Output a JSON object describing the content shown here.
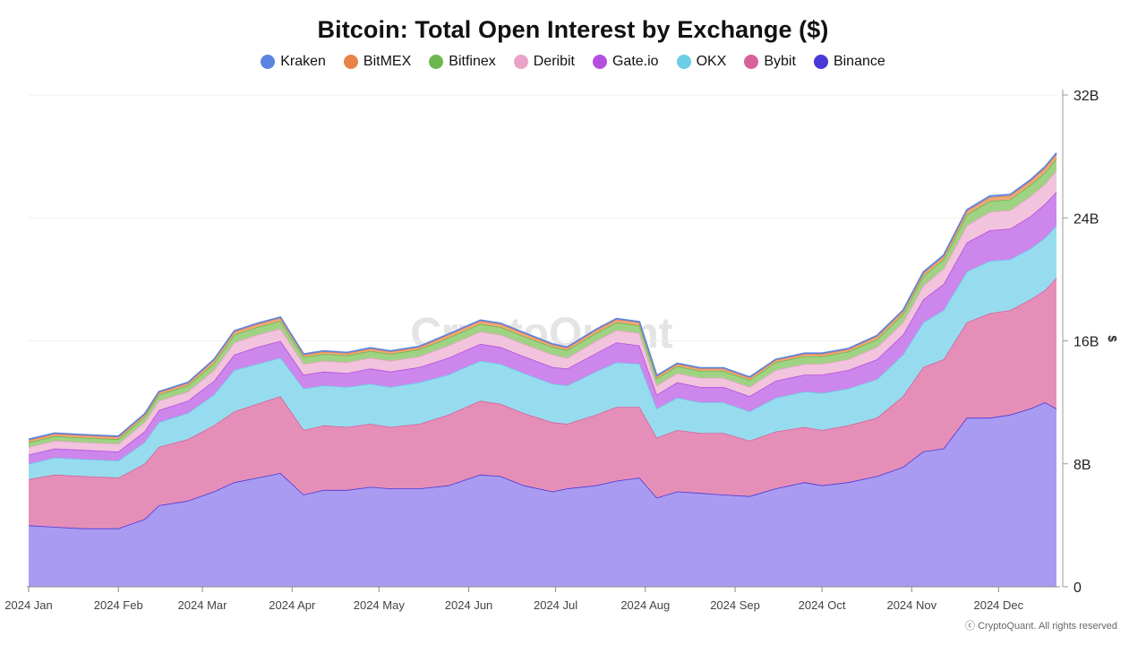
{
  "title": "Bitcoin: Total Open Interest by Exchange ($)",
  "footer": "ⓒ CryptoQuant. All rights reserved",
  "watermark": "CryptoQuant",
  "chart_data": {
    "type": "area",
    "stacked": true,
    "title": "Bitcoin: Total Open Interest by Exchange ($)",
    "ylabel": "$",
    "ylim": [
      0,
      32
    ],
    "y_unit": "B",
    "y_ticks": [
      0,
      8,
      16,
      24,
      32
    ],
    "y_tick_labels": [
      "0",
      "8B",
      "16B",
      "24B",
      "32B"
    ],
    "y_axis_position": "right",
    "grid": true,
    "legend_position": "top",
    "x": [
      "2024-01-01",
      "2024-01-10",
      "2024-01-20",
      "2024-02-01",
      "2024-02-10",
      "2024-02-15",
      "2024-02-25",
      "2024-03-05",
      "2024-03-12",
      "2024-03-20",
      "2024-03-28",
      "2024-04-05",
      "2024-04-12",
      "2024-04-20",
      "2024-04-28",
      "2024-05-05",
      "2024-05-15",
      "2024-05-25",
      "2024-06-05",
      "2024-06-12",
      "2024-06-20",
      "2024-06-30",
      "2024-07-05",
      "2024-07-15",
      "2024-07-22",
      "2024-07-30",
      "2024-08-05",
      "2024-08-12",
      "2024-08-20",
      "2024-08-28",
      "2024-09-06",
      "2024-09-15",
      "2024-09-25",
      "2024-10-01",
      "2024-10-10",
      "2024-10-20",
      "2024-10-29",
      "2024-11-05",
      "2024-11-12",
      "2024-11-20",
      "2024-11-28",
      "2024-12-05",
      "2024-12-12",
      "2024-12-17",
      "2024-12-21"
    ],
    "x_tick_labels": [
      "2024 Jan",
      "2024 Feb",
      "2024 Mar",
      "2024 Apr",
      "2024 May",
      "2024 Jun",
      "2024 Jul",
      "2024 Aug",
      "2024 Sep",
      "2024 Oct",
      "2024 Nov",
      "2024 Dec"
    ],
    "x_tick_dates": [
      "2024-01-01",
      "2024-02-01",
      "2024-03-01",
      "2024-04-01",
      "2024-05-01",
      "2024-06-01",
      "2024-07-01",
      "2024-08-01",
      "2024-09-01",
      "2024-10-01",
      "2024-11-01",
      "2024-12-01"
    ],
    "x_range": [
      "2024-01-01",
      "2024-12-21"
    ],
    "series": [
      {
        "name": "Binance",
        "color": "#4a38d8",
        "fill": "#a99bf2",
        "values": [
          4.0,
          3.9,
          3.8,
          3.8,
          4.4,
          5.3,
          5.6,
          6.2,
          6.8,
          7.1,
          7.4,
          6.0,
          6.3,
          6.3,
          6.5,
          6.4,
          6.4,
          6.6,
          7.3,
          7.2,
          6.6,
          6.2,
          6.4,
          6.6,
          6.9,
          7.1,
          5.8,
          6.2,
          6.1,
          6.0,
          5.9,
          6.4,
          6.8,
          6.6,
          6.8,
          7.2,
          7.8,
          8.8,
          9.0,
          11.0,
          11.0,
          11.2,
          11.6,
          12.0,
          11.6
        ]
      },
      {
        "name": "Bybit",
        "color": "#d9619a",
        "fill": "#e58fb8",
        "values": [
          3.0,
          3.4,
          3.4,
          3.3,
          3.6,
          3.8,
          4.0,
          4.3,
          4.6,
          4.8,
          5.0,
          4.2,
          4.2,
          4.1,
          4.1,
          4.0,
          4.2,
          4.6,
          4.8,
          4.7,
          4.7,
          4.5,
          4.2,
          4.6,
          4.8,
          4.6,
          3.9,
          4.0,
          3.9,
          4.0,
          3.6,
          3.7,
          3.6,
          3.6,
          3.7,
          3.8,
          4.6,
          5.5,
          5.8,
          6.2,
          6.8,
          6.8,
          7.1,
          7.3,
          8.5
        ]
      },
      {
        "name": "OKX",
        "color": "#6ccde6",
        "fill": "#97dcee",
        "values": [
          1.0,
          1.1,
          1.1,
          1.1,
          1.4,
          1.6,
          1.7,
          2.0,
          2.7,
          2.6,
          2.5,
          2.7,
          2.6,
          2.6,
          2.6,
          2.6,
          2.7,
          2.6,
          2.6,
          2.6,
          2.6,
          2.5,
          2.5,
          2.8,
          2.9,
          2.8,
          1.9,
          2.1,
          2.0,
          2.0,
          1.9,
          2.2,
          2.3,
          2.4,
          2.4,
          2.5,
          2.7,
          2.9,
          3.2,
          3.3,
          3.4,
          3.3,
          3.3,
          3.4,
          3.4
        ]
      },
      {
        "name": "Gate.io",
        "color": "#b44fdf",
        "fill": "#cd86ec",
        "values": [
          0.6,
          0.6,
          0.6,
          0.6,
          0.7,
          0.8,
          0.8,
          0.9,
          1.0,
          1.1,
          1.1,
          0.9,
          0.9,
          0.9,
          1.0,
          1.0,
          1.0,
          1.1,
          1.1,
          1.1,
          1.1,
          1.1,
          1.1,
          1.2,
          1.3,
          1.2,
          0.9,
          1.0,
          1.0,
          1.0,
          1.0,
          1.1,
          1.1,
          1.2,
          1.2,
          1.3,
          1.3,
          1.5,
          1.7,
          1.9,
          2.0,
          2.0,
          2.1,
          2.2,
          2.2
        ]
      },
      {
        "name": "Deribit",
        "color": "#eba2c9",
        "fill": "#f2c3dc",
        "values": [
          0.5,
          0.5,
          0.5,
          0.5,
          0.6,
          0.6,
          0.6,
          0.7,
          0.8,
          0.8,
          0.8,
          0.7,
          0.7,
          0.7,
          0.7,
          0.7,
          0.7,
          0.8,
          0.8,
          0.8,
          0.8,
          0.8,
          0.7,
          0.8,
          0.8,
          0.8,
          0.6,
          0.6,
          0.6,
          0.6,
          0.6,
          0.7,
          0.7,
          0.7,
          0.7,
          0.8,
          0.8,
          0.9,
          1.0,
          1.1,
          1.2,
          1.2,
          1.3,
          1.3,
          1.4
        ]
      },
      {
        "name": "Bitfinex",
        "color": "#6db84e",
        "fill": "#9fd384",
        "values": [
          0.3,
          0.3,
          0.3,
          0.3,
          0.35,
          0.4,
          0.4,
          0.45,
          0.5,
          0.5,
          0.5,
          0.45,
          0.45,
          0.45,
          0.45,
          0.45,
          0.45,
          0.5,
          0.5,
          0.5,
          0.5,
          0.5,
          0.5,
          0.5,
          0.5,
          0.5,
          0.45,
          0.45,
          0.45,
          0.45,
          0.45,
          0.5,
          0.5,
          0.5,
          0.5,
          0.5,
          0.55,
          0.6,
          0.6,
          0.7,
          0.7,
          0.7,
          0.75,
          0.75,
          0.75
        ]
      },
      {
        "name": "BitMEX",
        "color": "#e8834a",
        "fill": "#f0a877",
        "values": [
          0.15,
          0.15,
          0.15,
          0.15,
          0.15,
          0.15,
          0.15,
          0.2,
          0.2,
          0.2,
          0.2,
          0.15,
          0.15,
          0.15,
          0.15,
          0.15,
          0.15,
          0.2,
          0.2,
          0.2,
          0.2,
          0.15,
          0.15,
          0.2,
          0.2,
          0.2,
          0.15,
          0.15,
          0.15,
          0.15,
          0.15,
          0.15,
          0.15,
          0.15,
          0.15,
          0.2,
          0.2,
          0.2,
          0.2,
          0.25,
          0.25,
          0.25,
          0.25,
          0.3,
          0.3
        ]
      },
      {
        "name": "Kraken",
        "color": "#5b84e0",
        "fill": "#8aa8ec",
        "values": [
          0.05,
          0.05,
          0.05,
          0.05,
          0.05,
          0.05,
          0.05,
          0.05,
          0.05,
          0.05,
          0.05,
          0.05,
          0.05,
          0.05,
          0.05,
          0.05,
          0.05,
          0.05,
          0.05,
          0.05,
          0.05,
          0.05,
          0.05,
          0.05,
          0.05,
          0.05,
          0.05,
          0.05,
          0.05,
          0.05,
          0.05,
          0.05,
          0.05,
          0.05,
          0.05,
          0.05,
          0.05,
          0.08,
          0.08,
          0.08,
          0.08,
          0.08,
          0.08,
          0.08,
          0.08
        ]
      }
    ],
    "legend_order": [
      "Kraken",
      "BitMEX",
      "Bitfinex",
      "Deribit",
      "Gate.io",
      "OKX",
      "Bybit",
      "Binance"
    ]
  }
}
